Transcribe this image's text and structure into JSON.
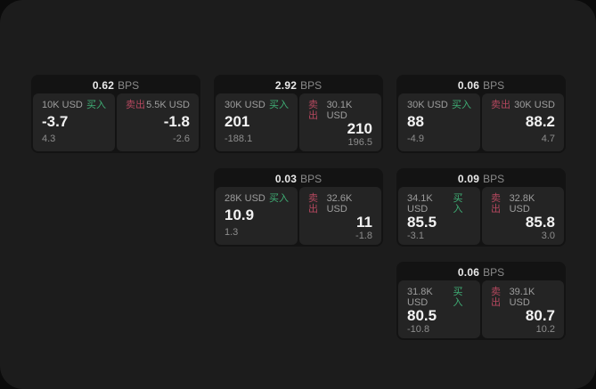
{
  "panel": {
    "page_background": "#0b0b0b",
    "panel_background": "#1c1c1c",
    "card_background": "#131313",
    "tile_background": "#242424"
  },
  "labels": {
    "buy": "买入",
    "sell": "卖出",
    "bps_unit": "BPS"
  },
  "colors": {
    "buy_green": "#3fae75",
    "sell_red": "#b5485f"
  },
  "cards": [
    {
      "bps": "0.62",
      "buy": {
        "amount": "10K USD",
        "value": "-3.7",
        "delta": "4.3"
      },
      "sell": {
        "amount": "5.5K USD",
        "value": "-1.8",
        "delta": "-2.6"
      }
    },
    {
      "bps": "2.92",
      "buy": {
        "amount": "30K USD",
        "value": "201",
        "delta": "-188.1"
      },
      "sell": {
        "amount": "30.1K USD",
        "value": "210",
        "delta": "196.5"
      }
    },
    {
      "bps": "0.06",
      "buy": {
        "amount": "30K USD",
        "value": "88",
        "delta": "-4.9"
      },
      "sell": {
        "amount": "30K USD",
        "value": "88.2",
        "delta": "4.7"
      }
    },
    {
      "bps": "0.03",
      "buy": {
        "amount": "28K USD",
        "value": "10.9",
        "delta": "1.3"
      },
      "sell": {
        "amount": "32.6K USD",
        "value": "11",
        "delta": "-1.8"
      }
    },
    {
      "bps": "0.09",
      "buy": {
        "amount": "34.1K USD",
        "value": "85.5",
        "delta": "-3.1"
      },
      "sell": {
        "amount": "32.8K USD",
        "value": "85.8",
        "delta": "3.0"
      }
    },
    {
      "bps": "0.06",
      "buy": {
        "amount": "31.8K USD",
        "value": "80.5",
        "delta": "-10.8"
      },
      "sell": {
        "amount": "39.1K USD",
        "value": "80.7",
        "delta": "10.2"
      }
    }
  ]
}
